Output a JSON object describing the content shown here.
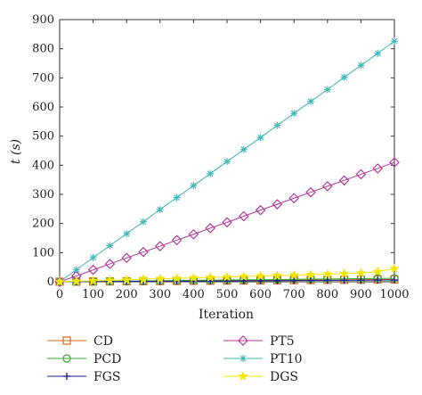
{
  "chart_data": {
    "type": "line",
    "xlabel": "Iteration",
    "ylabel": "t (s)",
    "xlim": [
      0,
      1000
    ],
    "ylim": [
      0,
      900
    ],
    "xticks": [
      0,
      100,
      200,
      300,
      400,
      500,
      600,
      700,
      800,
      900,
      1000
    ],
    "yticks": [
      0,
      100,
      200,
      300,
      400,
      500,
      600,
      700,
      800,
      900
    ],
    "grid": false,
    "legend_position": "bottom",
    "x": [
      0,
      50,
      100,
      150,
      200,
      250,
      300,
      350,
      400,
      450,
      500,
      550,
      600,
      650,
      700,
      750,
      800,
      850,
      900,
      950,
      1000
    ],
    "series": [
      {
        "name": "CD",
        "marker": "square",
        "color": "#d2691e",
        "values": [
          0,
          0.4,
          0.8,
          1.2,
          1.6,
          2,
          2.4,
          2.8,
          3.2,
          3.6,
          4,
          4.4,
          4.8,
          5.2,
          5.6,
          6,
          6.4,
          6.8,
          7.2,
          7.6,
          8
        ]
      },
      {
        "name": "PCD",
        "marker": "circle",
        "color": "#3aa832",
        "values": [
          0,
          0.6,
          1.2,
          1.8,
          2.4,
          3,
          3.6,
          4.2,
          4.8,
          5.4,
          6,
          6.6,
          7.2,
          7.8,
          8.4,
          9,
          9.6,
          10.2,
          10.8,
          11.4,
          12
        ]
      },
      {
        "name": "FGS",
        "marker": "plus",
        "color": "#1f1f8f",
        "values": [
          0,
          0.3,
          0.6,
          0.9,
          1.2,
          1.5,
          1.8,
          2.1,
          2.4,
          2.7,
          3,
          3.3,
          3.6,
          3.9,
          4.2,
          4.5,
          4.8,
          5.1,
          5.4,
          5.7,
          6
        ]
      },
      {
        "name": "PT5",
        "marker": "diamond",
        "color": "#b03a9e",
        "values": [
          0,
          20,
          41,
          61,
          82,
          102,
          122,
          143,
          163,
          184,
          204,
          225,
          246,
          266,
          287,
          307,
          328,
          348,
          369,
          389,
          410
        ]
      },
      {
        "name": "PT10",
        "marker": "asterisk",
        "color": "#3fb6b6",
        "values": [
          0,
          41,
          83,
          124,
          165,
          206,
          248,
          289,
          330,
          371,
          413,
          454,
          495,
          537,
          578,
          619,
          660,
          702,
          743,
          784,
          826
        ]
      },
      {
        "name": "DGS",
        "marker": "star",
        "color": "#f2e600",
        "values": [
          0,
          1.5,
          3,
          5,
          7,
          9,
          10.5,
          12,
          13.5,
          15,
          16.5,
          18,
          19.5,
          21,
          22.5,
          24,
          26,
          28,
          30,
          35,
          45
        ]
      }
    ]
  }
}
